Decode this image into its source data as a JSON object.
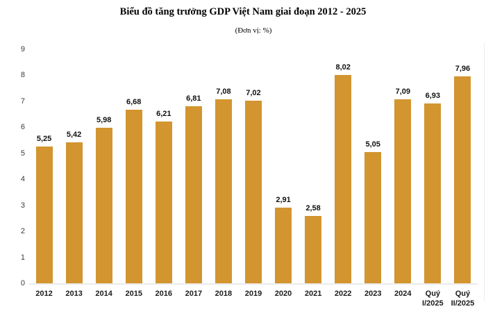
{
  "chart_data": {
    "type": "bar",
    "title": "Biểu đồ tăng trưởng GDP Việt Nam giai đoạn 2012 - 2025",
    "subtitle": "(Đơn vị: %)",
    "unit": "%",
    "categories": [
      "2012",
      "2013",
      "2014",
      "2015",
      "2016",
      "2017",
      "2018",
      "2019",
      "2020",
      "2021",
      "2022",
      "2023",
      "2024",
      "Quý I/2025",
      "Quý II/2025"
    ],
    "values": [
      5.25,
      5.42,
      5.98,
      6.68,
      6.21,
      6.81,
      7.08,
      7.02,
      2.91,
      2.58,
      8.02,
      5.05,
      7.09,
      6.93,
      7.96
    ],
    "value_labels": [
      "5,25",
      "5,42",
      "5,98",
      "6,68",
      "6,21",
      "6,81",
      "7,08",
      "7,02",
      "2,91",
      "2,58",
      "8,02",
      "5,05",
      "7,09",
      "6,93",
      "7,96"
    ],
    "xlabel": "",
    "ylabel": "",
    "ylim": [
      0,
      9
    ],
    "yticks": [
      0,
      1,
      2,
      3,
      4,
      5,
      6,
      7,
      8,
      9
    ],
    "grid": false,
    "legend": "none",
    "colors": {
      "bar": "#D2952F",
      "value_label": "#111111",
      "axis_label": "#3a3a3a",
      "category_label": "#1a1a1a",
      "baseline": "#EBEBEB",
      "background": "#FFFFFF"
    }
  }
}
